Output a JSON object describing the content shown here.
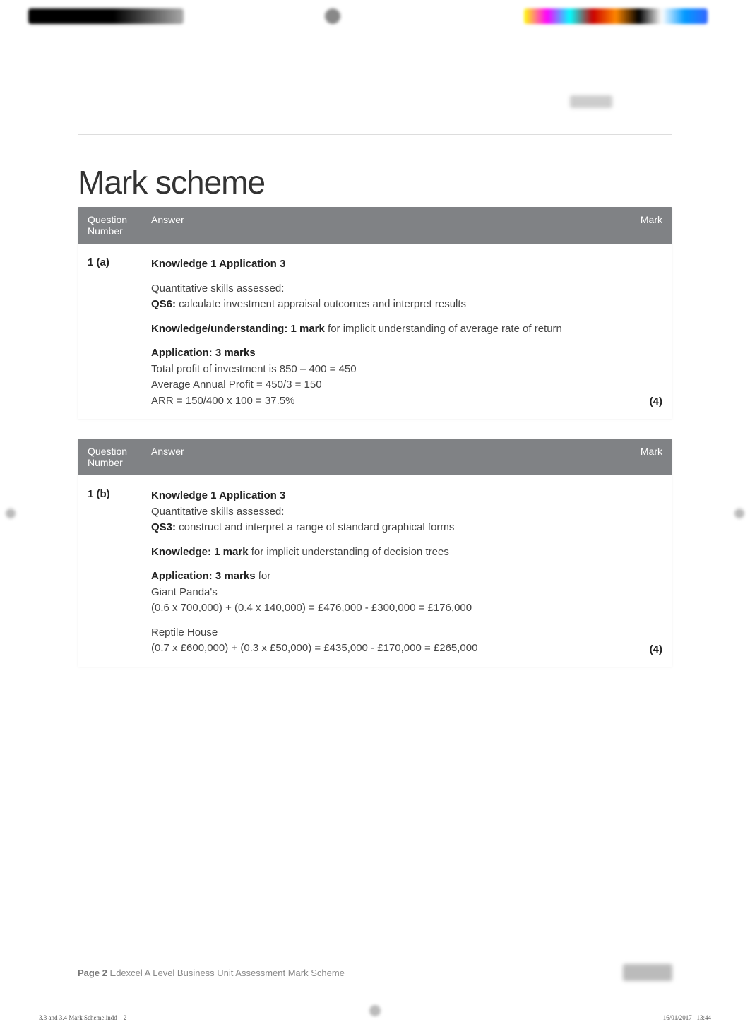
{
  "title": "Mark scheme",
  "header_cols": {
    "question": "Question Number",
    "answer": "Answer",
    "mark": "Mark"
  },
  "q1a": {
    "num": "1 (a)",
    "heading": "Knowledge 1 Application 3",
    "skills_label": "Quantitative skills assessed:",
    "qs_label": "QS6:",
    "qs_text": " calculate investment appraisal outcomes and interpret results",
    "knowledge_label": "Knowledge/understanding: 1 mark",
    "knowledge_text": " for implicit understanding of average rate of return",
    "app_label": "Application: 3 marks",
    "line1": "Total profit of investment is 850 – 400 = 450",
    "line2": "Average Annual Profit = 450/3 = 150",
    "line3": "ARR = 150/400 x 100 = 37.5%",
    "mark": "(4)"
  },
  "q1b": {
    "num": "1 (b)",
    "heading": "Knowledge 1 Application 3",
    "skills_label": "Quantitative skills assessed:",
    "qs_label": "QS3:",
    "qs_text": " construct and interpret a range of standard graphical forms",
    "knowledge_label": "Knowledge: 1 mark",
    "knowledge_text": " for implicit understanding of decision trees",
    "app_label": "Application: 3 marks",
    "app_for": " for",
    "gp_label": "Giant Panda's",
    "gp_calc": "(0.6 x 700,000) + (0.4 x 140,000) = £476,000 - £300,000 = £176,000",
    "rh_label": "Reptile House",
    "rh_calc": "(0.7 x £600,000) + (0.3 x £50,000) = £435,000 - £170,000 = £265,000",
    "mark": "(4)"
  },
  "footer": {
    "page_label": "Page 2",
    "doc_title": "  Edexcel A Level Business Unit Assessment Mark Scheme"
  },
  "print_meta": {
    "file": "3.3 and 3.4 Mark Scheme.indd",
    "page": "2",
    "date": "16/01/2017",
    "time": "13:44"
  },
  "colors": {
    "header_bg": "#808285",
    "header_text": "#ffffff",
    "body_text": "#444444",
    "bold_text": "#222222",
    "divider": "#dddddd",
    "background": "#ffffff"
  }
}
